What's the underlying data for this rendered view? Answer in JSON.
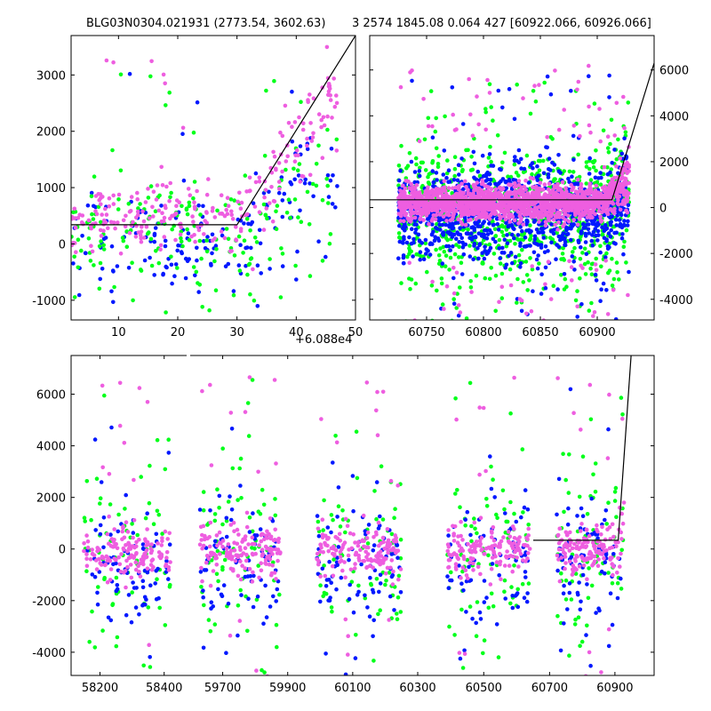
{
  "header": {
    "left_title": "BLG03N0304.021931 (2773.54, 3602.63)",
    "right_title": "3 2574 1845.08 0.064 427 [60922.066, 60926.066]"
  },
  "colors": {
    "series_blue": "#0018ff",
    "series_green": "#00ff1a",
    "series_pink": "#ee5ee0",
    "model_line": "#000000"
  },
  "chart_data": [
    {
      "type": "scatter",
      "panel": "top-left",
      "title": "BLG03N0304.021931 (2773.54, 3602.63)",
      "xlim": [
        2,
        50
      ],
      "ylim": [
        -1350,
        3700
      ],
      "x_ticks": [
        10,
        20,
        30,
        40,
        50
      ],
      "y_ticks": [
        -1000,
        0,
        1000,
        2000,
        3000
      ],
      "x_offset_label": "+6.088e4",
      "series": [
        {
          "name": "blue",
          "color_key": "series_blue",
          "n": 170,
          "x_range": [
            2,
            47
          ],
          "y_center": 0,
          "y_spread": 450
        },
        {
          "name": "green",
          "color_key": "series_green",
          "n": 190,
          "x_range": [
            2,
            47
          ],
          "y_center": 100,
          "y_spread": 500
        },
        {
          "name": "pink",
          "color_key": "series_pink",
          "n": 260,
          "x_range": [
            2,
            47
          ],
          "y_center": 450,
          "y_spread": 280
        }
      ],
      "model_line": [
        [
          2,
          340
        ],
        [
          30,
          340
        ],
        [
          50,
          3700
        ]
      ]
    },
    {
      "type": "scatter",
      "panel": "top-right",
      "xlim": [
        60700,
        60950
      ],
      "ylim": [
        -4900,
        7500
      ],
      "x_ticks": [
        60750,
        60800,
        60850,
        60900
      ],
      "y_ticks": [
        -4000,
        -2000,
        0,
        2000,
        4000,
        6000
      ],
      "y_axis_side": "right",
      "series": [
        {
          "name": "green",
          "color_key": "series_green",
          "n": 900,
          "x_range": [
            60725,
            60928
          ],
          "y_center": -300,
          "y_spread": 1400
        },
        {
          "name": "blue",
          "color_key": "series_blue",
          "n": 1100,
          "x_range": [
            60725,
            60928
          ],
          "y_center": -250,
          "y_spread": 1000
        },
        {
          "name": "pink",
          "color_key": "series_pink",
          "n": 1800,
          "x_range": [
            60725,
            60928
          ],
          "y_center": 200,
          "y_spread": 350
        }
      ],
      "model_line": [
        [
          60700,
          340
        ],
        [
          60913,
          340
        ],
        [
          60950,
          6300
        ]
      ]
    },
    {
      "type": "scatter",
      "panel": "bottom",
      "x_ticks": [
        "58200",
        "58400",
        "59700",
        "59900",
        "60100",
        "60300",
        "60500",
        "60700",
        "60900"
      ],
      "ylim": [
        -4900,
        7500
      ],
      "y_ticks": [
        -4000,
        -2000,
        0,
        2000,
        4000,
        6000
      ],
      "seasons": [
        {
          "x_range": [
            58150,
            58420
          ]
        },
        {
          "x_range": [
            59630,
            59880
          ]
        },
        {
          "x_range": [
            59990,
            60250
          ]
        },
        {
          "x_range": [
            60390,
            60640
          ]
        },
        {
          "x_range": [
            60720,
            60928
          ]
        }
      ],
      "series": [
        {
          "name": "green",
          "color_key": "series_green",
          "n": 380,
          "y_center": -400,
          "y_spread": 1700
        },
        {
          "name": "blue",
          "color_key": "series_blue",
          "n": 420,
          "y_center": -500,
          "y_spread": 1200
        },
        {
          "name": "pink",
          "color_key": "series_pink",
          "n": 800,
          "y_center": -100,
          "y_spread": 500
        }
      ],
      "model_line": [
        [
          60650,
          340
        ],
        [
          60910,
          340
        ],
        [
          60950,
          7600
        ]
      ]
    }
  ]
}
